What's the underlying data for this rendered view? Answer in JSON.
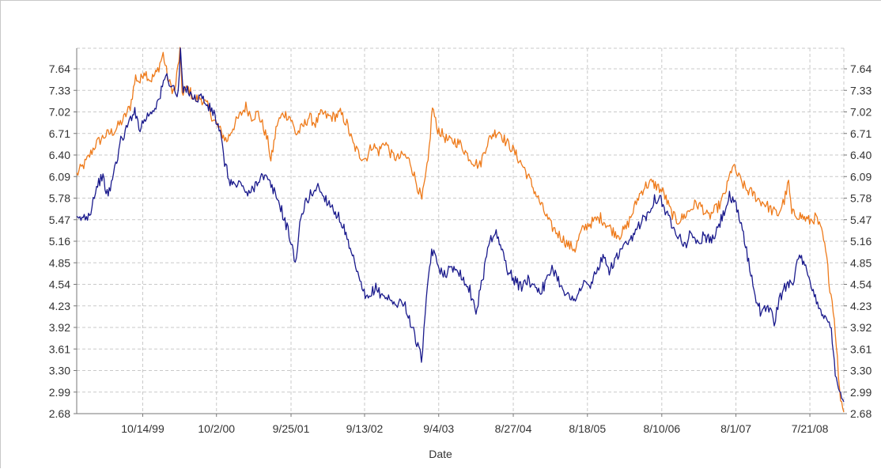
{
  "chart_data": {
    "type": "line",
    "title": "",
    "xlabel": "Date",
    "ylabel": "",
    "grid": true,
    "legend": "none",
    "ylim": [
      2.68,
      7.95
    ],
    "y_ticks": [
      "7.64",
      "7.33",
      "7.02",
      "6.71",
      "6.40",
      "6.09",
      "5.78",
      "5.47",
      "5.16",
      "4.85",
      "4.54",
      "4.23",
      "3.92",
      "3.61",
      "3.30",
      "2.99",
      "2.68"
    ],
    "x_ticks": [
      "10/14/99",
      "10/2/00",
      "9/25/01",
      "9/13/02",
      "9/4/03",
      "8/27/04",
      "8/18/05",
      "8/10/06",
      "8/1/07",
      "7/21/08"
    ],
    "x_range": [
      "12/1/98",
      "12/31/08"
    ],
    "series": [
      {
        "color": "#ee7a1a",
        "points": [
          [
            "12/1/98",
            6.12
          ],
          [
            "1/15/99",
            6.3
          ],
          [
            "3/1/99",
            6.55
          ],
          [
            "4/15/99",
            6.68
          ],
          [
            "6/1/99",
            6.75
          ],
          [
            "7/15/99",
            6.92
          ],
          [
            "8/15/99",
            7.1
          ],
          [
            "9/10/99",
            7.52
          ],
          [
            "10/1/99",
            7.45
          ],
          [
            "10/20/99",
            7.62
          ],
          [
            "11/20/99",
            7.48
          ],
          [
            "12/20/99",
            7.58
          ],
          [
            "1/20/00",
            7.85
          ],
          [
            "2/15/00",
            7.45
          ],
          [
            "3/15/00",
            7.3
          ],
          [
            "4/10/00",
            7.9
          ],
          [
            "4/20/00",
            7.3
          ],
          [
            "5/20/00",
            7.35
          ],
          [
            "6/20/00",
            7.2
          ],
          [
            "7/20/00",
            7.22
          ],
          [
            "8/20/00",
            7.1
          ],
          [
            "9/20/00",
            6.9
          ],
          [
            "10/20/00",
            6.75
          ],
          [
            "11/20/00",
            6.6
          ],
          [
            "12/20/00",
            6.8
          ],
          [
            "1/20/01",
            6.95
          ],
          [
            "2/20/01",
            7.1
          ],
          [
            "3/20/01",
            6.95
          ],
          [
            "4/20/01",
            7.0
          ],
          [
            "5/15/01",
            6.8
          ],
          [
            "6/10/01",
            6.55
          ],
          [
            "6/20/01",
            6.3
          ],
          [
            "7/20/01",
            6.85
          ],
          [
            "8/20/01",
            7.0
          ],
          [
            "9/20/01",
            6.95
          ],
          [
            "10/20/01",
            6.7
          ],
          [
            "11/20/01",
            6.8
          ],
          [
            "12/20/01",
            6.95
          ],
          [
            "1/20/02",
            6.85
          ],
          [
            "2/20/02",
            7.0
          ],
          [
            "3/20/02",
            6.95
          ],
          [
            "4/20/02",
            6.95
          ],
          [
            "5/20/02",
            7.0
          ],
          [
            "6/20/02",
            6.85
          ],
          [
            "7/20/02",
            6.55
          ],
          [
            "8/20/02",
            6.4
          ],
          [
            "9/20/02",
            6.35
          ],
          [
            "10/20/02",
            6.55
          ],
          [
            "11/20/02",
            6.45
          ],
          [
            "12/20/02",
            6.6
          ],
          [
            "1/20/03",
            6.4
          ],
          [
            "2/20/03",
            6.35
          ],
          [
            "3/20/03",
            6.4
          ],
          [
            "4/20/03",
            6.3
          ],
          [
            "5/20/03",
            6.0
          ],
          [
            "6/15/03",
            5.75
          ],
          [
            "7/15/03",
            6.3
          ],
          [
            "8/5/03",
            7.1
          ],
          [
            "8/25/03",
            6.8
          ],
          [
            "9/20/03",
            6.7
          ],
          [
            "10/20/03",
            6.6
          ],
          [
            "11/20/03",
            6.6
          ],
          [
            "12/20/03",
            6.55
          ],
          [
            "1/20/04",
            6.4
          ],
          [
            "2/20/04",
            6.3
          ],
          [
            "3/20/04",
            6.25
          ],
          [
            "4/20/04",
            6.55
          ],
          [
            "5/20/04",
            6.7
          ],
          [
            "6/20/04",
            6.75
          ],
          [
            "7/20/04",
            6.6
          ],
          [
            "8/20/04",
            6.5
          ],
          [
            "9/20/04",
            6.35
          ],
          [
            "10/20/04",
            6.2
          ],
          [
            "11/20/04",
            6.0
          ],
          [
            "12/20/04",
            5.8
          ],
          [
            "1/20/05",
            5.6
          ],
          [
            "2/20/05",
            5.4
          ],
          [
            "3/20/05",
            5.3
          ],
          [
            "4/20/05",
            5.2
          ],
          [
            "5/20/05",
            5.1
          ],
          [
            "6/20/05",
            5.05
          ],
          [
            "7/20/05",
            5.3
          ],
          [
            "8/20/05",
            5.4
          ],
          [
            "9/20/05",
            5.45
          ],
          [
            "10/20/05",
            5.5
          ],
          [
            "11/20/05",
            5.4
          ],
          [
            "12/20/05",
            5.3
          ],
          [
            "1/20/06",
            5.25
          ],
          [
            "2/20/06",
            5.35
          ],
          [
            "3/20/06",
            5.55
          ],
          [
            "4/20/06",
            5.8
          ],
          [
            "5/20/06",
            5.95
          ],
          [
            "6/20/06",
            6.0
          ],
          [
            "7/20/06",
            5.95
          ],
          [
            "8/20/06",
            5.85
          ],
          [
            "9/20/06",
            5.6
          ],
          [
            "10/20/06",
            5.45
          ],
          [
            "11/20/06",
            5.5
          ],
          [
            "12/20/06",
            5.6
          ],
          [
            "1/20/07",
            5.7
          ],
          [
            "2/20/07",
            5.65
          ],
          [
            "3/20/07",
            5.5
          ],
          [
            "4/20/07",
            5.6
          ],
          [
            "5/20/07",
            5.7
          ],
          [
            "6/20/07",
            5.95
          ],
          [
            "7/15/07",
            6.25
          ],
          [
            "8/20/07",
            6.05
          ],
          [
            "9/20/07",
            5.9
          ],
          [
            "10/20/07",
            5.85
          ],
          [
            "11/20/07",
            5.75
          ],
          [
            "12/20/07",
            5.7
          ],
          [
            "1/20/08",
            5.6
          ],
          [
            "2/20/08",
            5.55
          ],
          [
            "3/20/08",
            5.75
          ],
          [
            "4/10/08",
            6.0
          ],
          [
            "4/25/08",
            5.55
          ],
          [
            "5/20/08",
            5.55
          ],
          [
            "6/20/08",
            5.5
          ],
          [
            "7/20/08",
            5.45
          ],
          [
            "8/20/08",
            5.5
          ],
          [
            "9/20/08",
            5.25
          ],
          [
            "10/10/08",
            4.9
          ],
          [
            "10/25/08",
            4.5
          ],
          [
            "11/10/08",
            4.2
          ],
          [
            "11/25/08",
            3.7
          ],
          [
            "12/10/08",
            3.0
          ],
          [
            "12/31/08",
            2.7
          ]
        ]
      },
      {
        "color": "#1a1a8c",
        "points": [
          [
            "12/1/98",
            5.45
          ],
          [
            "1/1/99",
            5.5
          ],
          [
            "2/1/99",
            5.55
          ],
          [
            "3/1/99",
            5.9
          ],
          [
            "4/1/99",
            6.1
          ],
          [
            "5/1/99",
            5.8
          ],
          [
            "6/1/99",
            6.2
          ],
          [
            "7/1/99",
            6.6
          ],
          [
            "8/1/99",
            6.8
          ],
          [
            "9/1/99",
            7.05
          ],
          [
            "10/1/99",
            6.8
          ],
          [
            "11/1/99",
            6.95
          ],
          [
            "12/1/99",
            7.05
          ],
          [
            "1/1/00",
            7.2
          ],
          [
            "2/1/00",
            7.55
          ],
          [
            "3/1/00",
            7.4
          ],
          [
            "4/1/00",
            7.25
          ],
          [
            "4/12/00",
            7.9
          ],
          [
            "4/25/00",
            7.3
          ],
          [
            "5/20/00",
            7.35
          ],
          [
            "6/20/00",
            7.2
          ],
          [
            "7/20/00",
            7.25
          ],
          [
            "8/20/00",
            7.1
          ],
          [
            "9/20/00",
            7.0
          ],
          [
            "10/20/00",
            6.7
          ],
          [
            "11/10/00",
            6.3
          ],
          [
            "12/1/00",
            6.05
          ],
          [
            "1/1/01",
            5.95
          ],
          [
            "2/1/01",
            6.0
          ],
          [
            "3/1/01",
            5.8
          ],
          [
            "4/1/01",
            5.95
          ],
          [
            "5/1/01",
            6.1
          ],
          [
            "6/1/01",
            6.05
          ],
          [
            "7/1/01",
            5.9
          ],
          [
            "8/1/01",
            5.7
          ],
          [
            "9/1/01",
            5.4
          ],
          [
            "10/1/01",
            5.1
          ],
          [
            "10/15/01",
            4.8
          ],
          [
            "11/1/01",
            5.3
          ],
          [
            "12/1/01",
            5.7
          ],
          [
            "1/1/02",
            5.85
          ],
          [
            "2/1/02",
            5.95
          ],
          [
            "3/1/02",
            5.8
          ],
          [
            "4/1/02",
            5.7
          ],
          [
            "5/1/02",
            5.55
          ],
          [
            "6/1/02",
            5.4
          ],
          [
            "7/1/02",
            5.05
          ],
          [
            "8/1/02",
            4.8
          ],
          [
            "9/1/02",
            4.45
          ],
          [
            "10/1/02",
            4.3
          ],
          [
            "11/1/02",
            4.5
          ],
          [
            "12/1/02",
            4.4
          ],
          [
            "1/1/03",
            4.35
          ],
          [
            "2/1/03",
            4.25
          ],
          [
            "3/1/03",
            4.3
          ],
          [
            "4/1/03",
            4.2
          ],
          [
            "5/1/03",
            3.9
          ],
          [
            "6/1/03",
            3.6
          ],
          [
            "6/13/03",
            3.45
          ],
          [
            "7/1/03",
            4.1
          ],
          [
            "8/1/03",
            5.05
          ],
          [
            "9/1/03",
            4.8
          ],
          [
            "10/1/03",
            4.7
          ],
          [
            "11/1/03",
            4.75
          ],
          [
            "12/1/03",
            4.8
          ],
          [
            "1/1/04",
            4.6
          ],
          [
            "2/1/04",
            4.45
          ],
          [
            "3/1/04",
            4.15
          ],
          [
            "4/1/04",
            4.6
          ],
          [
            "5/1/04",
            5.15
          ],
          [
            "6/1/04",
            5.3
          ],
          [
            "7/1/04",
            5.05
          ],
          [
            "8/1/04",
            4.75
          ],
          [
            "9/1/04",
            4.6
          ],
          [
            "10/1/04",
            4.5
          ],
          [
            "11/1/04",
            4.6
          ],
          [
            "12/1/04",
            4.55
          ],
          [
            "1/1/05",
            4.45
          ],
          [
            "2/1/05",
            4.55
          ],
          [
            "3/1/05",
            4.8
          ],
          [
            "4/1/05",
            4.6
          ],
          [
            "5/1/05",
            4.45
          ],
          [
            "6/1/05",
            4.3
          ],
          [
            "7/1/05",
            4.4
          ],
          [
            "8/1/05",
            4.55
          ],
          [
            "9/1/05",
            4.5
          ],
          [
            "10/1/05",
            4.75
          ],
          [
            "11/1/05",
            4.9
          ],
          [
            "12/1/05",
            4.75
          ],
          [
            "1/1/06",
            4.9
          ],
          [
            "2/1/06",
            5.05
          ],
          [
            "3/1/06",
            5.1
          ],
          [
            "4/1/06",
            5.25
          ],
          [
            "5/1/06",
            5.45
          ],
          [
            "6/1/06",
            5.55
          ],
          [
            "7/1/06",
            5.75
          ],
          [
            "8/1/06",
            5.8
          ],
          [
            "9/1/06",
            5.55
          ],
          [
            "10/1/06",
            5.4
          ],
          [
            "11/1/06",
            5.25
          ],
          [
            "12/1/06",
            5.1
          ],
          [
            "1/1/07",
            5.3
          ],
          [
            "2/1/07",
            5.1
          ],
          [
            "3/1/07",
            5.25
          ],
          [
            "4/1/07",
            5.15
          ],
          [
            "5/1/07",
            5.3
          ],
          [
            "6/1/07",
            5.55
          ],
          [
            "7/1/07",
            5.8
          ],
          [
            "8/1/07",
            5.65
          ],
          [
            "9/1/07",
            5.35
          ],
          [
            "10/1/07",
            4.85
          ],
          [
            "11/1/07",
            4.4
          ],
          [
            "12/1/07",
            4.1
          ],
          [
            "1/1/08",
            4.25
          ],
          [
            "2/1/08",
            4.0
          ],
          [
            "3/1/08",
            4.35
          ],
          [
            "4/1/08",
            4.55
          ],
          [
            "5/1/08",
            4.6
          ],
          [
            "6/1/08",
            4.95
          ],
          [
            "7/1/08",
            4.75
          ],
          [
            "8/1/08",
            4.45
          ],
          [
            "9/1/08",
            4.25
          ],
          [
            "10/1/08",
            4.05
          ],
          [
            "11/1/08",
            3.9
          ],
          [
            "11/20/08",
            3.3
          ],
          [
            "12/10/08",
            3.0
          ],
          [
            "12/31/08",
            2.85
          ]
        ]
      }
    ]
  }
}
